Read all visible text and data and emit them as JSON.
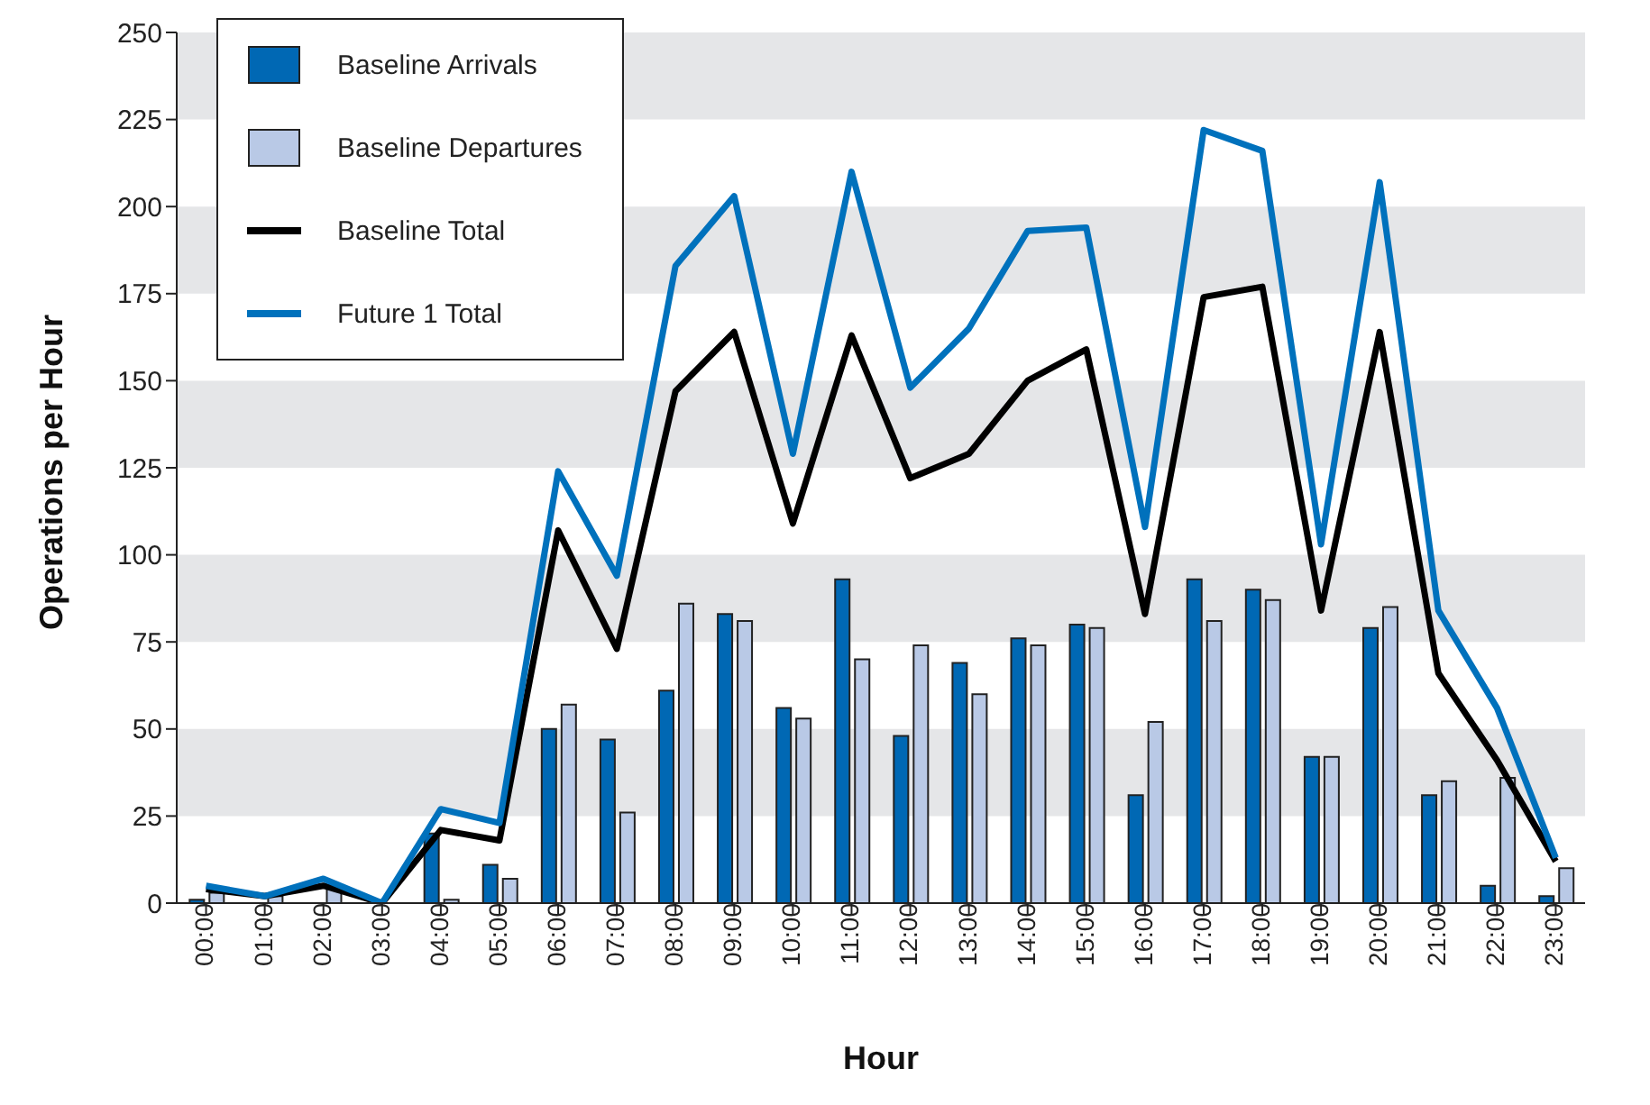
{
  "chart_data": {
    "type": "bar",
    "xlabel": "Hour",
    "ylabel": "Operations per Hour",
    "categories": [
      "00:00",
      "01:00",
      "02:00",
      "03:00",
      "04:00",
      "05:00",
      "06:00",
      "07:00",
      "08:00",
      "09:00",
      "10:00",
      "11:00",
      "12:00",
      "13:00",
      "14:00",
      "15:00",
      "16:00",
      "17:00",
      "18:00",
      "19:00",
      "20:00",
      "21:00",
      "22:00",
      "23:00"
    ],
    "series": [
      {
        "name": "Baseline Arrivals",
        "color": "#0068b4",
        "values": [
          1,
          0,
          0,
          0,
          20,
          11,
          50,
          47,
          61,
          83,
          56,
          93,
          48,
          69,
          76,
          80,
          31,
          93,
          90,
          42,
          79,
          31,
          5,
          2
        ]
      },
      {
        "name": "Baseline Departures",
        "color": "#b9c9e6",
        "values": [
          3,
          2,
          5,
          0,
          1,
          7,
          57,
          26,
          86,
          81,
          53,
          70,
          74,
          60,
          74,
          79,
          52,
          81,
          87,
          42,
          85,
          35,
          36,
          10
        ]
      },
      {
        "name": "Baseline Total",
        "type": "line",
        "color": "#000000",
        "values": [
          4,
          2,
          5,
          0,
          21,
          18,
          107,
          73,
          147,
          164,
          109,
          163,
          122,
          129,
          150,
          159,
          83,
          174,
          177,
          84,
          164,
          66,
          41,
          12
        ]
      },
      {
        "name": "Future 1 Total",
        "type": "line",
        "color": "#0071bc",
        "values": [
          5,
          2,
          7,
          0,
          27,
          23,
          124,
          94,
          183,
          203,
          129,
          210,
          148,
          165,
          193,
          194,
          108,
          222,
          216,
          103,
          207,
          84,
          56,
          13
        ]
      }
    ],
    "ylim": [
      0,
      250
    ],
    "yticks": [
      0,
      25,
      50,
      75,
      100,
      125,
      150,
      175,
      200,
      225,
      250
    ],
    "bands": [
      {
        "axis": "y",
        "from": 25,
        "to": 50,
        "color": "#e5e6e8"
      },
      {
        "axis": "y",
        "from": 75,
        "to": 100,
        "color": "#e5e6e8"
      },
      {
        "axis": "y",
        "from": 125,
        "to": 150,
        "color": "#e5e6e8"
      },
      {
        "axis": "y",
        "from": 175,
        "to": 200,
        "color": "#e5e6e8"
      },
      {
        "axis": "y",
        "from": 225,
        "to": 250,
        "color": "#e5e6e8"
      }
    ],
    "legend": "top left",
    "grid": false,
    "marker": "none",
    "line_style": "solid"
  }
}
